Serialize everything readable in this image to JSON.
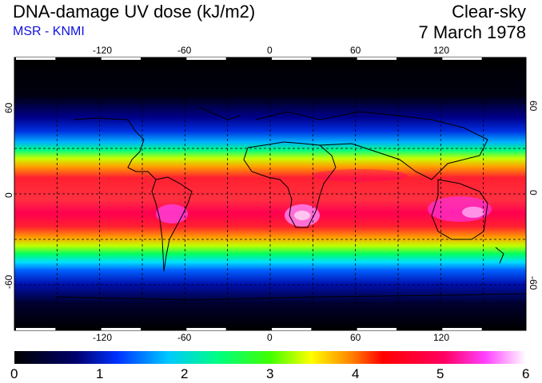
{
  "header": {
    "title": "DNA-damage UV dose (kJ/m2)",
    "source": "MSR - KNMI",
    "condition": "Clear-sky",
    "date": "7 March 1978"
  },
  "map": {
    "lon_ticks": [
      "-120",
      "-60",
      "0",
      "60",
      "120"
    ],
    "lat_ticks": [
      "60",
      "0",
      "-60"
    ],
    "lon_values": [
      -120,
      -60,
      0,
      60,
      120
    ],
    "lat_values": [
      60,
      0,
      -60
    ],
    "grid_lon_step": 30,
    "grid_lat_step": 30,
    "lon_range": [
      -180,
      180
    ],
    "lat_range": [
      -90,
      90
    ]
  },
  "colorbar": {
    "labels": [
      "0",
      "1",
      "2",
      "3",
      "4",
      "5",
      "6"
    ],
    "range": [
      0,
      6
    ],
    "colors": [
      "#000000",
      "#0000a0",
      "#0050ff",
      "#00ffff",
      "#00ff40",
      "#ffff00",
      "#ff2020",
      "#ff00a0",
      "#ffffff"
    ]
  }
}
